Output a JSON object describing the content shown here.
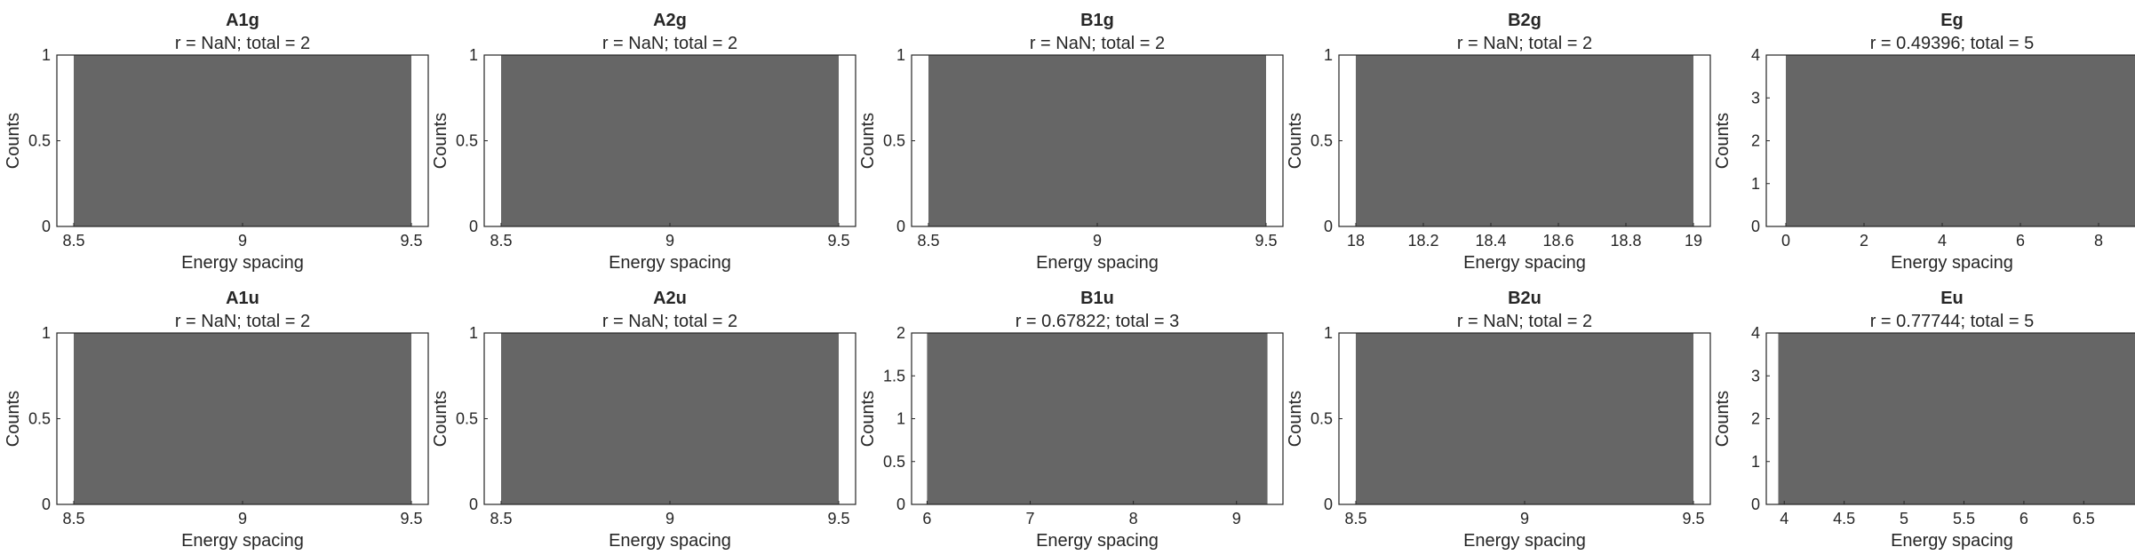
{
  "figure": {
    "background": "#ffffff",
    "bar_color": "#666666",
    "axes_color": "#262626"
  },
  "chart_data": [
    {
      "type": "bar",
      "title": "A1g",
      "subtitle": "r = NaN; total = 2",
      "xlabel": "Energy spacing",
      "ylabel": "Counts",
      "xlim": [
        8.45,
        9.55
      ],
      "ylim": [
        0,
        1
      ],
      "xticks": [
        8.5,
        9,
        9.5
      ],
      "xtick_labels": [
        "8.5",
        "9",
        "9.5"
      ],
      "yticks": [
        0,
        0.5,
        1
      ],
      "ytick_labels": [
        "0",
        "0.5",
        "1"
      ],
      "bins": [
        {
          "start": 8.5,
          "end": 9.5,
          "count": 1
        }
      ]
    },
    {
      "type": "bar",
      "title": "A2g",
      "subtitle": "r = NaN; total = 2",
      "xlabel": "Energy spacing",
      "ylabel": "Counts",
      "xlim": [
        8.45,
        9.55
      ],
      "ylim": [
        0,
        1
      ],
      "xticks": [
        8.5,
        9,
        9.5
      ],
      "xtick_labels": [
        "8.5",
        "9",
        "9.5"
      ],
      "yticks": [
        0,
        0.5,
        1
      ],
      "ytick_labels": [
        "0",
        "0.5",
        "1"
      ],
      "bins": [
        {
          "start": 8.5,
          "end": 9.5,
          "count": 1
        }
      ]
    },
    {
      "type": "bar",
      "title": "B1g",
      "subtitle": "r = NaN; total = 2",
      "xlabel": "Energy spacing",
      "ylabel": "Counts",
      "xlim": [
        8.45,
        9.55
      ],
      "ylim": [
        0,
        1
      ],
      "xticks": [
        8.5,
        9,
        9.5
      ],
      "xtick_labels": [
        "8.5",
        "9",
        "9.5"
      ],
      "yticks": [
        0,
        0.5,
        1
      ],
      "ytick_labels": [
        "0",
        "0.5",
        "1"
      ],
      "bins": [
        {
          "start": 8.5,
          "end": 9.5,
          "count": 1
        }
      ]
    },
    {
      "type": "bar",
      "title": "B2g",
      "subtitle": "r = NaN; total = 2",
      "xlabel": "Energy spacing",
      "ylabel": "Counts",
      "xlim": [
        17.95,
        19.05
      ],
      "ylim": [
        0,
        1
      ],
      "xticks": [
        18,
        18.2,
        18.4,
        18.6,
        18.8,
        19
      ],
      "xtick_labels": [
        "18",
        "18.2",
        "18.4",
        "18.6",
        "18.8",
        "19"
      ],
      "yticks": [
        0,
        0.5,
        1
      ],
      "ytick_labels": [
        "0",
        "0.5",
        "1"
      ],
      "bins": [
        {
          "start": 18,
          "end": 19,
          "count": 1
        }
      ]
    },
    {
      "type": "bar",
      "title": "Eg",
      "subtitle": "r = 0.49396; total = 5",
      "xlabel": "Energy spacing",
      "ylabel": "Counts",
      "xlim": [
        -0.5,
        9
      ],
      "ylim": [
        0,
        4
      ],
      "xticks": [
        0,
        2,
        4,
        6,
        8
      ],
      "xtick_labels": [
        "0",
        "2",
        "4",
        "6",
        "8"
      ],
      "yticks": [
        0,
        1,
        2,
        3,
        4
      ],
      "ytick_labels": [
        "0",
        "1",
        "2",
        "3",
        "4"
      ],
      "bins": [
        {
          "start": 0,
          "end": 9,
          "count": 4
        }
      ]
    },
    {
      "type": "bar",
      "title": "A1u",
      "subtitle": "r = NaN; total = 2",
      "xlabel": "Energy spacing",
      "ylabel": "Counts",
      "xlim": [
        8.45,
        9.55
      ],
      "ylim": [
        0,
        1
      ],
      "xticks": [
        8.5,
        9,
        9.5
      ],
      "xtick_labels": [
        "8.5",
        "9",
        "9.5"
      ],
      "yticks": [
        0,
        0.5,
        1
      ],
      "ytick_labels": [
        "0",
        "0.5",
        "1"
      ],
      "bins": [
        {
          "start": 8.5,
          "end": 9.5,
          "count": 1
        }
      ]
    },
    {
      "type": "bar",
      "title": "A2u",
      "subtitle": "r = NaN; total = 2",
      "xlabel": "Energy spacing",
      "ylabel": "Counts",
      "xlim": [
        8.45,
        9.55
      ],
      "ylim": [
        0,
        1
      ],
      "xticks": [
        8.5,
        9,
        9.5
      ],
      "xtick_labels": [
        "8.5",
        "9",
        "9.5"
      ],
      "yticks": [
        0,
        0.5,
        1
      ],
      "ytick_labels": [
        "0",
        "0.5",
        "1"
      ],
      "bins": [
        {
          "start": 8.5,
          "end": 9.5,
          "count": 1
        }
      ]
    },
    {
      "type": "bar",
      "title": "B1u",
      "subtitle": "r = 0.67822; total = 3",
      "xlabel": "Energy spacing",
      "ylabel": "Counts",
      "xlim": [
        5.85,
        9.45
      ],
      "ylim": [
        0,
        2
      ],
      "xticks": [
        6,
        7,
        8,
        9
      ],
      "xtick_labels": [
        "6",
        "7",
        "8",
        "9"
      ],
      "yticks": [
        0,
        0.5,
        1,
        1.5,
        2
      ],
      "ytick_labels": [
        "0",
        "0.5",
        "1",
        "1.5",
        "2"
      ],
      "bins": [
        {
          "start": 6,
          "end": 9.3,
          "count": 2
        }
      ]
    },
    {
      "type": "bar",
      "title": "B2u",
      "subtitle": "r = NaN; total = 2",
      "xlabel": "Energy spacing",
      "ylabel": "Counts",
      "xlim": [
        8.45,
        9.55
      ],
      "ylim": [
        0,
        1
      ],
      "xticks": [
        8.5,
        9,
        9.5
      ],
      "xtick_labels": [
        "8.5",
        "9",
        "9.5"
      ],
      "yticks": [
        0,
        0.5,
        1
      ],
      "ytick_labels": [
        "0",
        "0.5",
        "1"
      ],
      "bins": [
        {
          "start": 8.5,
          "end": 9.5,
          "count": 1
        }
      ]
    },
    {
      "type": "bar",
      "title": "Eu",
      "subtitle": "r = 0.77744; total = 5",
      "xlabel": "Energy spacing",
      "ylabel": "Counts",
      "xlim": [
        3.85,
        6.95
      ],
      "ylim": [
        0,
        4
      ],
      "xticks": [
        4,
        4.5,
        5,
        5.5,
        6,
        6.5
      ],
      "xtick_labels": [
        "4",
        "4.5",
        "5",
        "5.5",
        "6",
        "6.5"
      ],
      "yticks": [
        0,
        1,
        2,
        3,
        4
      ],
      "ytick_labels": [
        "0",
        "1",
        "2",
        "3",
        "4"
      ],
      "bins": [
        {
          "start": 3.95,
          "end": 6.95,
          "count": 4
        }
      ]
    }
  ]
}
